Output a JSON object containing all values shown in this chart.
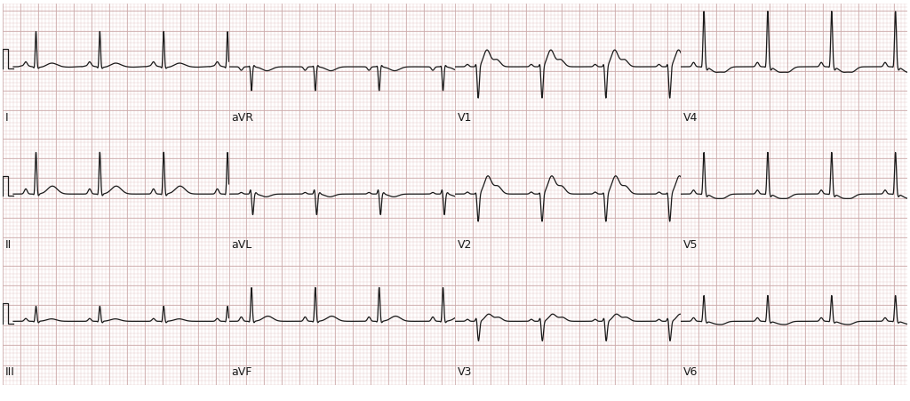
{
  "bg_color": "#ffffff",
  "grid_dot_color": "#ddbbbb",
  "grid_major_color": "#ccaaaa",
  "line_color": "#1a1a1a",
  "line_width": 0.9,
  "lead_label_fontsize": 9,
  "leads_layout": [
    [
      "I",
      "aVR",
      "V1",
      "V4"
    ],
    [
      "II",
      "aVL",
      "V2",
      "V5"
    ],
    [
      "III",
      "aVF",
      "V3",
      "V6"
    ]
  ],
  "beat_period": 0.72,
  "fs": 500,
  "duration": 2.55,
  "y_range": 1.6
}
